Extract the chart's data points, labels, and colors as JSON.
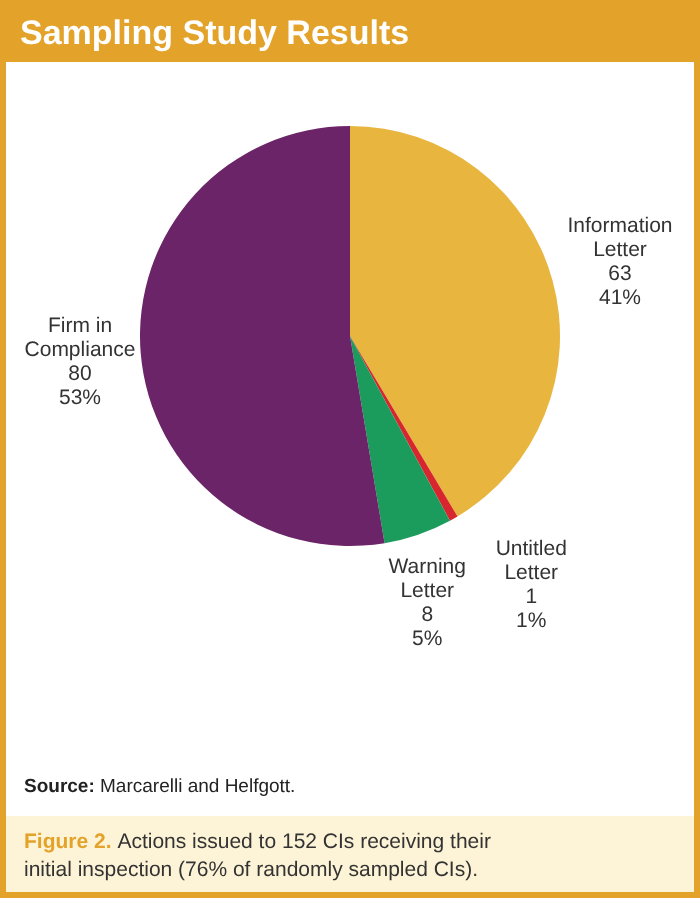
{
  "chart_data": {
    "type": "pie",
    "title": "Sampling Study Results",
    "categories": [
      "Information Letter",
      "Untitled Letter",
      "Warning Letter",
      "Firm in Compliance"
    ],
    "values": [
      63,
      1,
      8,
      80
    ],
    "value_labels": [
      "63\n41%",
      "1\n1%",
      "8\n5%",
      "80\n53%"
    ],
    "colors": [
      "#e8b53e",
      "#d8262e",
      "#1c9c5c",
      "#6a2467"
    ],
    "annotations": [
      "Source: Marcarelli and Helfgott.",
      "Figure 2. Actions issued to 152 CIs receiving their initial inspection (76% of randomly sampled CIs)."
    ]
  }
}
